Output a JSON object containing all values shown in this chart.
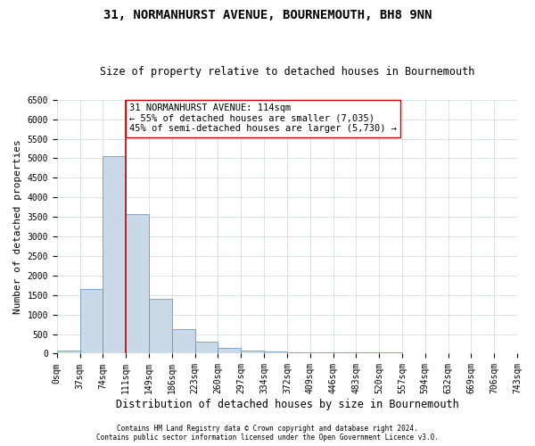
{
  "title": "31, NORMANHURST AVENUE, BOURNEMOUTH, BH8 9NN",
  "subtitle": "Size of property relative to detached houses in Bournemouth",
  "xlabel": "Distribution of detached houses by size in Bournemouth",
  "ylabel": "Number of detached properties",
  "bar_values": [
    70,
    1650,
    5050,
    3580,
    1410,
    620,
    300,
    140,
    90,
    65,
    45,
    40,
    35,
    30,
    25,
    20,
    15,
    10,
    8,
    5
  ],
  "bin_labels": [
    "0sqm",
    "37sqm",
    "74sqm",
    "111sqm",
    "149sqm",
    "186sqm",
    "223sqm",
    "260sqm",
    "297sqm",
    "334sqm",
    "372sqm",
    "409sqm",
    "446sqm",
    "483sqm",
    "520sqm",
    "557sqm",
    "594sqm",
    "632sqm",
    "669sqm",
    "706sqm",
    "743sqm"
  ],
  "bar_color": "#c9d9e8",
  "bar_edge_color": "#5b8db8",
  "property_line_x": 3,
  "property_line_color": "#cc0000",
  "annotation_text": "31 NORMANHURST AVENUE: 114sqm\n← 55% of detached houses are smaller (7,035)\n45% of semi-detached houses are larger (5,730) →",
  "annotation_box_color": "#ffffff",
  "annotation_box_edge": "#cc0000",
  "ylim": [
    0,
    6500
  ],
  "yticks": [
    0,
    500,
    1000,
    1500,
    2000,
    2500,
    3000,
    3500,
    4000,
    4500,
    5000,
    5500,
    6000,
    6500
  ],
  "footnote1": "Contains HM Land Registry data © Crown copyright and database right 2024.",
  "footnote2": "Contains public sector information licensed under the Open Government Licence v3.0.",
  "background_color": "#ffffff",
  "grid_color": "#c8d8e8",
  "title_fontsize": 10,
  "subtitle_fontsize": 8.5,
  "xlabel_fontsize": 8.5,
  "ylabel_fontsize": 8,
  "tick_fontsize": 7,
  "annotation_fontsize": 7.5,
  "footnote_fontsize": 5.5
}
